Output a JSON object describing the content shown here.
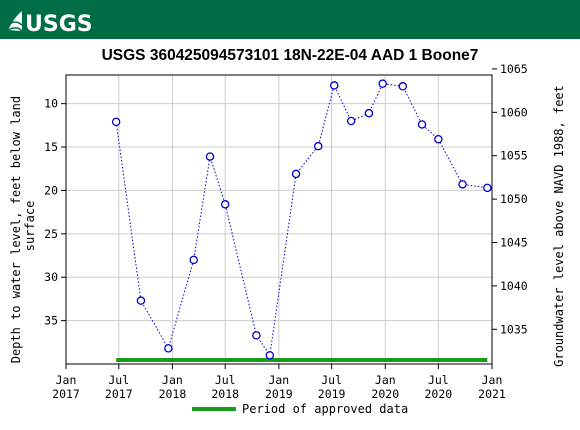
{
  "header": {
    "logo_text": "USGS"
  },
  "colors": {
    "banner": "#006e45",
    "series": "#0000cc",
    "approved": "#1a9e1a",
    "grid": "#cccccc"
  },
  "chart_data": {
    "type": "scatter",
    "title": "USGS 360425094573101 18N-22E-04 AAD 1 Boone7",
    "ylabel_left": "Depth to water level, feet below land surface",
    "ylabel_right": "Groundwater level above NAVD 1988, feet",
    "y_left_range": [
      40.0,
      6.7
    ],
    "y_left_ticks": [
      10,
      15,
      20,
      25,
      30,
      35
    ],
    "y_right_ticks": [
      1035,
      1040,
      1045,
      1050,
      1055,
      1060,
      1065
    ],
    "right_axis_offset": 1071.0,
    "x_range": [
      "2017-01-01",
      "2021-01-01"
    ],
    "x_ticks": [
      {
        "date": "2017-01-01",
        "line1": "Jan",
        "line2": "2017"
      },
      {
        "date": "2017-07-01",
        "line1": "Jul",
        "line2": "2017"
      },
      {
        "date": "2018-01-01",
        "line1": "Jan",
        "line2": "2018"
      },
      {
        "date": "2018-07-01",
        "line1": "Jul",
        "line2": "2018"
      },
      {
        "date": "2019-01-01",
        "line1": "Jan",
        "line2": "2019"
      },
      {
        "date": "2019-07-01",
        "line1": "Jul",
        "line2": "2019"
      },
      {
        "date": "2020-01-01",
        "line1": "Jan",
        "line2": "2020"
      },
      {
        "date": "2020-07-01",
        "line1": "Jul",
        "line2": "2020"
      },
      {
        "date": "2021-01-01",
        "line1": "Jan",
        "line2": "2021"
      }
    ],
    "series": [
      {
        "style": "dotted line with open circles",
        "points": [
          {
            "date": "2017-06-22",
            "value": 12.1
          },
          {
            "date": "2017-09-15",
            "value": 32.7
          },
          {
            "date": "2017-12-18",
            "value": 38.2
          },
          {
            "date": "2018-03-15",
            "value": 28.0
          },
          {
            "date": "2018-05-10",
            "value": 16.1
          },
          {
            "date": "2018-07-01",
            "value": 21.6
          },
          {
            "date": "2018-10-16",
            "value": 36.7
          },
          {
            "date": "2018-12-01",
            "value": 39.0
          },
          {
            "date": "2019-03-01",
            "value": 18.1
          },
          {
            "date": "2019-05-16",
            "value": 14.9
          },
          {
            "date": "2019-07-10",
            "value": 7.9
          },
          {
            "date": "2019-09-06",
            "value": 12.0
          },
          {
            "date": "2019-11-06",
            "value": 11.1
          },
          {
            "date": "2019-12-23",
            "value": 7.7
          },
          {
            "date": "2020-03-01",
            "value": 8.0
          },
          {
            "date": "2020-05-06",
            "value": 12.4
          },
          {
            "date": "2020-07-01",
            "value": 14.1
          },
          {
            "date": "2020-09-22",
            "value": 19.3
          },
          {
            "date": "2020-12-16",
            "value": 19.7
          }
        ]
      }
    ],
    "approved_period": {
      "start": "2017-06-22",
      "end": "2020-12-16"
    },
    "legend": {
      "label": "Period of approved data",
      "placement": "bottom"
    },
    "grid": true
  }
}
